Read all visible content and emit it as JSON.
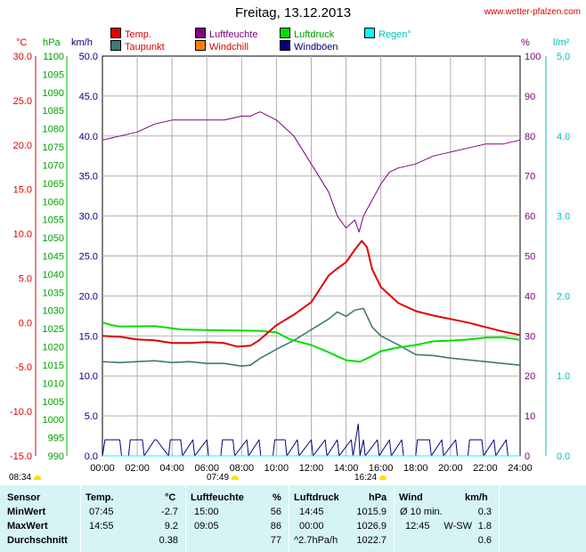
{
  "header": {
    "title": "Freitag, 13.12.2013",
    "site": "www.wetter-pfalzen.com"
  },
  "legend": [
    {
      "label": "Temp.",
      "color": "#e00000",
      "name": "legend-temp",
      "text_color": "#e00000"
    },
    {
      "label": "Luftfeuchte",
      "color": "#800080",
      "name": "legend-humidity",
      "text_color": "#800080"
    },
    {
      "label": "Luftdruck",
      "color": "#00e000",
      "name": "legend-pressure",
      "text_color": "#00a000"
    },
    {
      "label": "Regen°",
      "color": "#00ffff",
      "name": "legend-rain",
      "text_color": "#00c0c0"
    },
    {
      "label": "Taupunkt",
      "color": "#407878",
      "name": "legend-dewpoint",
      "text_color": "#e00000"
    },
    {
      "label": "Windchill",
      "color": "#ff8000",
      "name": "legend-windchill",
      "text_color": "#e00000"
    },
    {
      "label": "Windböen",
      "color": "#000080",
      "name": "legend-gusts",
      "text_color": "#000080"
    }
  ],
  "axes": {
    "unit_temp": "°C",
    "unit_pressure": "hPa",
    "unit_wind": "km/h",
    "unit_humidity": "%",
    "unit_rain": "l/m²",
    "temp_ticks": [
      "30.0",
      "25.0",
      "20.0",
      "15.0",
      "10.0",
      "5.0",
      "0.0",
      "-5.0",
      "-10.0",
      "-15.0"
    ],
    "pressure_ticks": [
      "1100",
      "1095",
      "1090",
      "1085",
      "1080",
      "1075",
      "1070",
      "1065",
      "1060",
      "1055",
      "1050",
      "1045",
      "1040",
      "1035",
      "1030",
      "1025",
      "1020",
      "1015",
      "1010",
      "1005",
      "1000",
      "995",
      "990"
    ],
    "wind_ticks": [
      "50.0",
      "45.0",
      "40.0",
      "35.0",
      "30.0",
      "25.0",
      "20.0",
      "15.0",
      "10.0",
      "5.0",
      "0.0"
    ],
    "humidity_ticks": [
      "100",
      "90",
      "80",
      "70",
      "60",
      "50",
      "40",
      "30",
      "20",
      "10",
      "0"
    ],
    "rain_ticks": [
      "5.0",
      "4.0",
      "3.0",
      "2.0",
      "1.0",
      "0.0"
    ],
    "time_ticks": [
      "00:00",
      "02:00",
      "04:00",
      "06:00",
      "08:00",
      "10:00",
      "12:00",
      "14:00",
      "16:00",
      "18:00",
      "20:00",
      "22:00",
      "24:00"
    ],
    "colors": {
      "temp": "#e00000",
      "pressure": "#00a000",
      "wind": "#000080",
      "humidity": "#800080",
      "rain": "#00c0c0"
    }
  },
  "sun": {
    "sunrise": "07:49",
    "sunset": "16:24",
    "moonrise": "08:34"
  },
  "chart_data": {
    "type": "line",
    "title": "Freitag, 13.12.2013",
    "x_unit": "hours",
    "xlim": [
      0,
      24
    ],
    "series": [
      {
        "name": "Temp.",
        "axis": "temp",
        "ylim": [
          -15,
          30
        ],
        "color": "#e00000",
        "x": [
          0,
          1,
          2,
          3,
          4,
          5,
          6,
          7,
          7.75,
          8.5,
          9,
          10,
          11,
          12,
          13,
          13.5,
          14,
          14.5,
          14.9,
          15.2,
          15.5,
          16,
          17,
          18,
          19,
          20,
          21,
          22,
          23,
          24
        ],
        "values": [
          -1.5,
          -1.6,
          -1.9,
          -2.0,
          -2.3,
          -2.3,
          -2.2,
          -2.3,
          -2.7,
          -2.6,
          -2.0,
          -0.3,
          0.9,
          2.3,
          5.3,
          6.1,
          6.8,
          8.2,
          9.2,
          8.5,
          6.0,
          4.0,
          2.2,
          1.3,
          0.8,
          0.4,
          0.0,
          -0.5,
          -1.0,
          -1.4
        ]
      },
      {
        "name": "Taupunkt",
        "axis": "temp",
        "ylim": [
          -15,
          30
        ],
        "color": "#407878",
        "x": [
          0,
          1,
          2,
          3,
          4,
          5,
          6,
          7,
          8,
          8.5,
          9,
          10,
          11,
          12,
          13,
          13.5,
          14,
          14.5,
          15,
          15.5,
          16,
          17,
          18,
          19,
          20,
          21,
          22,
          23,
          24
        ],
        "values": [
          -4.4,
          -4.5,
          -4.4,
          -4.3,
          -4.5,
          -4.4,
          -4.6,
          -4.6,
          -4.9,
          -4.8,
          -4.1,
          -3.0,
          -2.0,
          -0.8,
          0.4,
          1.2,
          0.7,
          1.4,
          1.6,
          -0.5,
          -1.5,
          -2.5,
          -3.6,
          -3.7,
          -4.0,
          -4.2,
          -4.4,
          -4.6,
          -4.8
        ]
      },
      {
        "name": "Luftdruck",
        "axis": "pressure",
        "ylim": [
          990,
          1100
        ],
        "color": "#00e000",
        "x": [
          0,
          0.5,
          1,
          3,
          4.5,
          6,
          8,
          9,
          10,
          10.8,
          12,
          13,
          14,
          14.8,
          15.5,
          16,
          17,
          18,
          19,
          20,
          21,
          22,
          23,
          24
        ],
        "values": [
          1026.7,
          1026.0,
          1025.6,
          1025.7,
          1024.8,
          1024.6,
          1024.5,
          1024.4,
          1024.0,
          1022.0,
          1020.5,
          1018.5,
          1016.3,
          1015.9,
          1017.5,
          1018.8,
          1019.8,
          1020.5,
          1021.5,
          1021.7,
          1022.0,
          1022.5,
          1022.6,
          1021.9
        ]
      },
      {
        "name": "Luftfeuchte",
        "axis": "humidity",
        "ylim": [
          0,
          100
        ],
        "color": "#800080",
        "x": [
          0,
          1,
          2,
          3,
          4,
          5,
          6,
          7,
          8,
          8.5,
          9,
          9.1,
          10,
          11,
          12,
          13,
          13.5,
          14,
          14.5,
          14.75,
          15,
          15.5,
          16,
          16.5,
          17,
          18,
          19,
          20,
          21,
          22,
          23,
          24
        ],
        "values": [
          79,
          80,
          81,
          83,
          84,
          84,
          84,
          84,
          85,
          85,
          86,
          86,
          84,
          80,
          73,
          66,
          60,
          57,
          59,
          56,
          60,
          64,
          68,
          71,
          72,
          73,
          75,
          76,
          77,
          78,
          78,
          79
        ]
      },
      {
        "name": "Windböen",
        "axis": "wind",
        "ylim": [
          0,
          50
        ],
        "color": "#000080",
        "x": [
          0,
          0.15,
          0.25,
          1,
          1.1,
          1.5,
          1.6,
          2.3,
          2.4,
          3.0,
          3.1,
          3.8,
          3.9,
          4.5,
          4.6,
          5.2,
          5.3,
          6.0,
          6.1,
          6.8,
          6.9,
          7.5,
          7.6,
          8.3,
          8.4,
          9.0,
          9.1,
          9.8,
          9.9,
          10.5,
          10.6,
          11.2,
          11.3,
          12.0,
          12.1,
          12.8,
          12.9,
          13.5,
          13.6,
          14.3,
          14.4,
          14.7,
          14.8,
          15.0,
          15.1,
          15.8,
          15.9,
          16.5,
          16.6,
          17.2,
          17.3,
          18.0,
          18.1,
          18.8,
          18.9,
          19.5,
          19.6,
          20.3,
          20.4,
          21.0,
          21.1,
          21.8,
          21.9,
          22.5,
          22.6,
          23.2,
          23.3,
          24
        ],
        "values": [
          0,
          2,
          2,
          2,
          0,
          0,
          2,
          2,
          0,
          2,
          2,
          0,
          2,
          2,
          0,
          2,
          0,
          2,
          0,
          0,
          2,
          2,
          0,
          2,
          0,
          2,
          0,
          0,
          2,
          2,
          0,
          2,
          0,
          2,
          0,
          2,
          0,
          2,
          0,
          2,
          0,
          4,
          0,
          2,
          0,
          2,
          0,
          2,
          0,
          2,
          0,
          0,
          2,
          2,
          0,
          2,
          0,
          2,
          0,
          0,
          2,
          2,
          0,
          2,
          0,
          2,
          0,
          0
        ]
      },
      {
        "name": "Regen°",
        "axis": "rain",
        "ylim": [
          0,
          5
        ],
        "color": "#00ffff",
        "x": [
          0,
          24
        ],
        "values": [
          0,
          0
        ]
      }
    ]
  },
  "table": {
    "headers": {
      "sensor": "Sensor",
      "temp": "Temp.",
      "temp_unit": "°C",
      "humidity": "Luftfeuchte",
      "humidity_unit": "%",
      "pressure": "Luftdruck",
      "pressure_unit": "hPa",
      "wind": "Wind",
      "wind_unit": "km/h"
    },
    "rows": [
      {
        "label": "MinWert",
        "temp_time": "07:45",
        "temp": "-2.7",
        "hum_time": "15:00",
        "hum": "56",
        "pres_time": "14:45",
        "pres": "1015.9",
        "wind_time": "Ø 10 min.",
        "wind_dir": "",
        "wind": "0.3"
      },
      {
        "label": "MaxWert",
        "temp_time": "14:55",
        "temp": "9.2",
        "hum_time": "09:05",
        "hum": "86",
        "pres_time": "00:00",
        "pres": "1026.9",
        "wind_time": "12:45",
        "wind_dir": "W-SW",
        "wind": "1.8"
      },
      {
        "label": "Durchschnitt",
        "temp_time": "",
        "temp": "0.38",
        "hum_time": "",
        "hum": "77",
        "pres_time": "^2.7hPa/h",
        "pres": "1022.7",
        "wind_time": "",
        "wind_dir": "",
        "wind": "0.6"
      }
    ]
  }
}
